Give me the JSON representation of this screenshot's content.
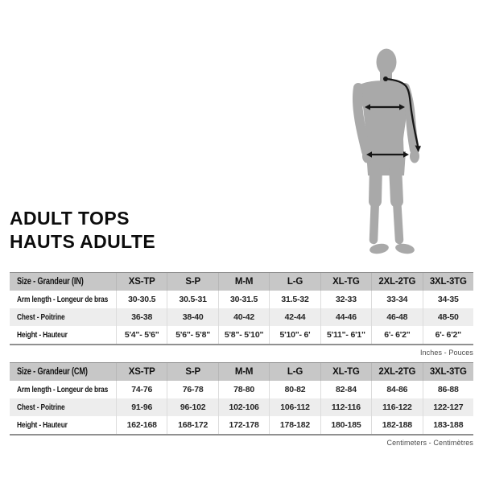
{
  "page": {
    "background": "#ffffff"
  },
  "title": {
    "line1": "ADULT TOPS",
    "line2": "HAUTS ADULTE"
  },
  "figure": {
    "name": "standing-man-silhouette",
    "silhouette_color": "#a9a9a9",
    "measurement_color": "#171717",
    "measurements_shown": [
      "arm-length-line",
      "chest-width-arrow",
      "hip-width-arrow"
    ]
  },
  "colors": {
    "header_bg": "#c7c7c7",
    "row_alt_bg": "#ededed",
    "table_border": "#909090",
    "title_text": "#0c0c0c"
  },
  "tables": [
    {
      "unit_caption": "Inches - Pouces",
      "header": [
        "Size - Grandeur (IN)",
        "XS-TP",
        "S-P",
        "M-M",
        "L-G",
        "XL-TG",
        "2XL-2TG",
        "3XL-3TG"
      ],
      "rows": [
        {
          "label": "Arm length - Longeur de bras",
          "values": [
            "30-30.5",
            "30.5-31",
            "30-31.5",
            "31.5-32",
            "32-33",
            "33-34",
            "34-35"
          ]
        },
        {
          "label": "Chest - Poitrine",
          "values": [
            "36-38",
            "38-40",
            "40-42",
            "42-44",
            "44-46",
            "46-48",
            "48-50"
          ]
        },
        {
          "label": "Height - Hauteur",
          "values": [
            "5'4\"- 5'6\"",
            "5'6\"- 5'8\"",
            "5'8\"- 5'10\"",
            "5'10\"- 6'",
            "5'11\"- 6'1\"",
            "6'- 6'2\"",
            "6'- 6'2\""
          ]
        }
      ]
    },
    {
      "unit_caption": "Centimeters - Centimètres",
      "header": [
        "Size - Grandeur (CM)",
        "XS-TP",
        "S-P",
        "M-M",
        "L-G",
        "XL-TG",
        "2XL-2TG",
        "3XL-3TG"
      ],
      "rows": [
        {
          "label": "Arm length - Longeur de bras",
          "values": [
            "74-76",
            "76-78",
            "78-80",
            "80-82",
            "82-84",
            "84-86",
            "86-88"
          ]
        },
        {
          "label": "Chest - Poitrine",
          "values": [
            "91-96",
            "96-102",
            "102-106",
            "106-112",
            "112-116",
            "116-122",
            "122-127"
          ]
        },
        {
          "label": "Height - Hauteur",
          "values": [
            "162-168",
            "168-172",
            "172-178",
            "178-182",
            "180-185",
            "182-188",
            "183-188"
          ]
        }
      ]
    }
  ],
  "chart_data": [
    {
      "type": "table",
      "title": "Inches - Pouces",
      "columns": [
        "Size - Grandeur (IN)",
        "XS-TP",
        "S-P",
        "M-M",
        "L-G",
        "XL-TG",
        "2XL-2TG",
        "3XL-3TG"
      ],
      "rows": [
        [
          "Arm length - Longeur de bras",
          "30-30.5",
          "30.5-31",
          "30-31.5",
          "31.5-32",
          "32-33",
          "33-34",
          "34-35"
        ],
        [
          "Chest - Poitrine",
          "36-38",
          "38-40",
          "40-42",
          "42-44",
          "44-46",
          "46-48",
          "48-50"
        ],
        [
          "Height - Hauteur",
          "5'4\"- 5'6\"",
          "5'6\"- 5'8\"",
          "5'8\"- 5'10\"",
          "5'10\"- 6'",
          "5'11\"- 6'1\"",
          "6'- 6'2\"",
          "6'- 6'2\""
        ]
      ]
    },
    {
      "type": "table",
      "title": "Centimeters - Centimètres",
      "columns": [
        "Size - Grandeur (CM)",
        "XS-TP",
        "S-P",
        "M-M",
        "L-G",
        "XL-TG",
        "2XL-2TG",
        "3XL-3TG"
      ],
      "rows": [
        [
          "Arm length - Longeur de bras",
          "74-76",
          "76-78",
          "78-80",
          "80-82",
          "82-84",
          "84-86",
          "86-88"
        ],
        [
          "Chest - Poitrine",
          "91-96",
          "96-102",
          "102-106",
          "106-112",
          "112-116",
          "116-122",
          "122-127"
        ],
        [
          "Height - Hauteur",
          "162-168",
          "168-172",
          "172-178",
          "178-182",
          "180-185",
          "182-188",
          "183-188"
        ]
      ]
    }
  ]
}
